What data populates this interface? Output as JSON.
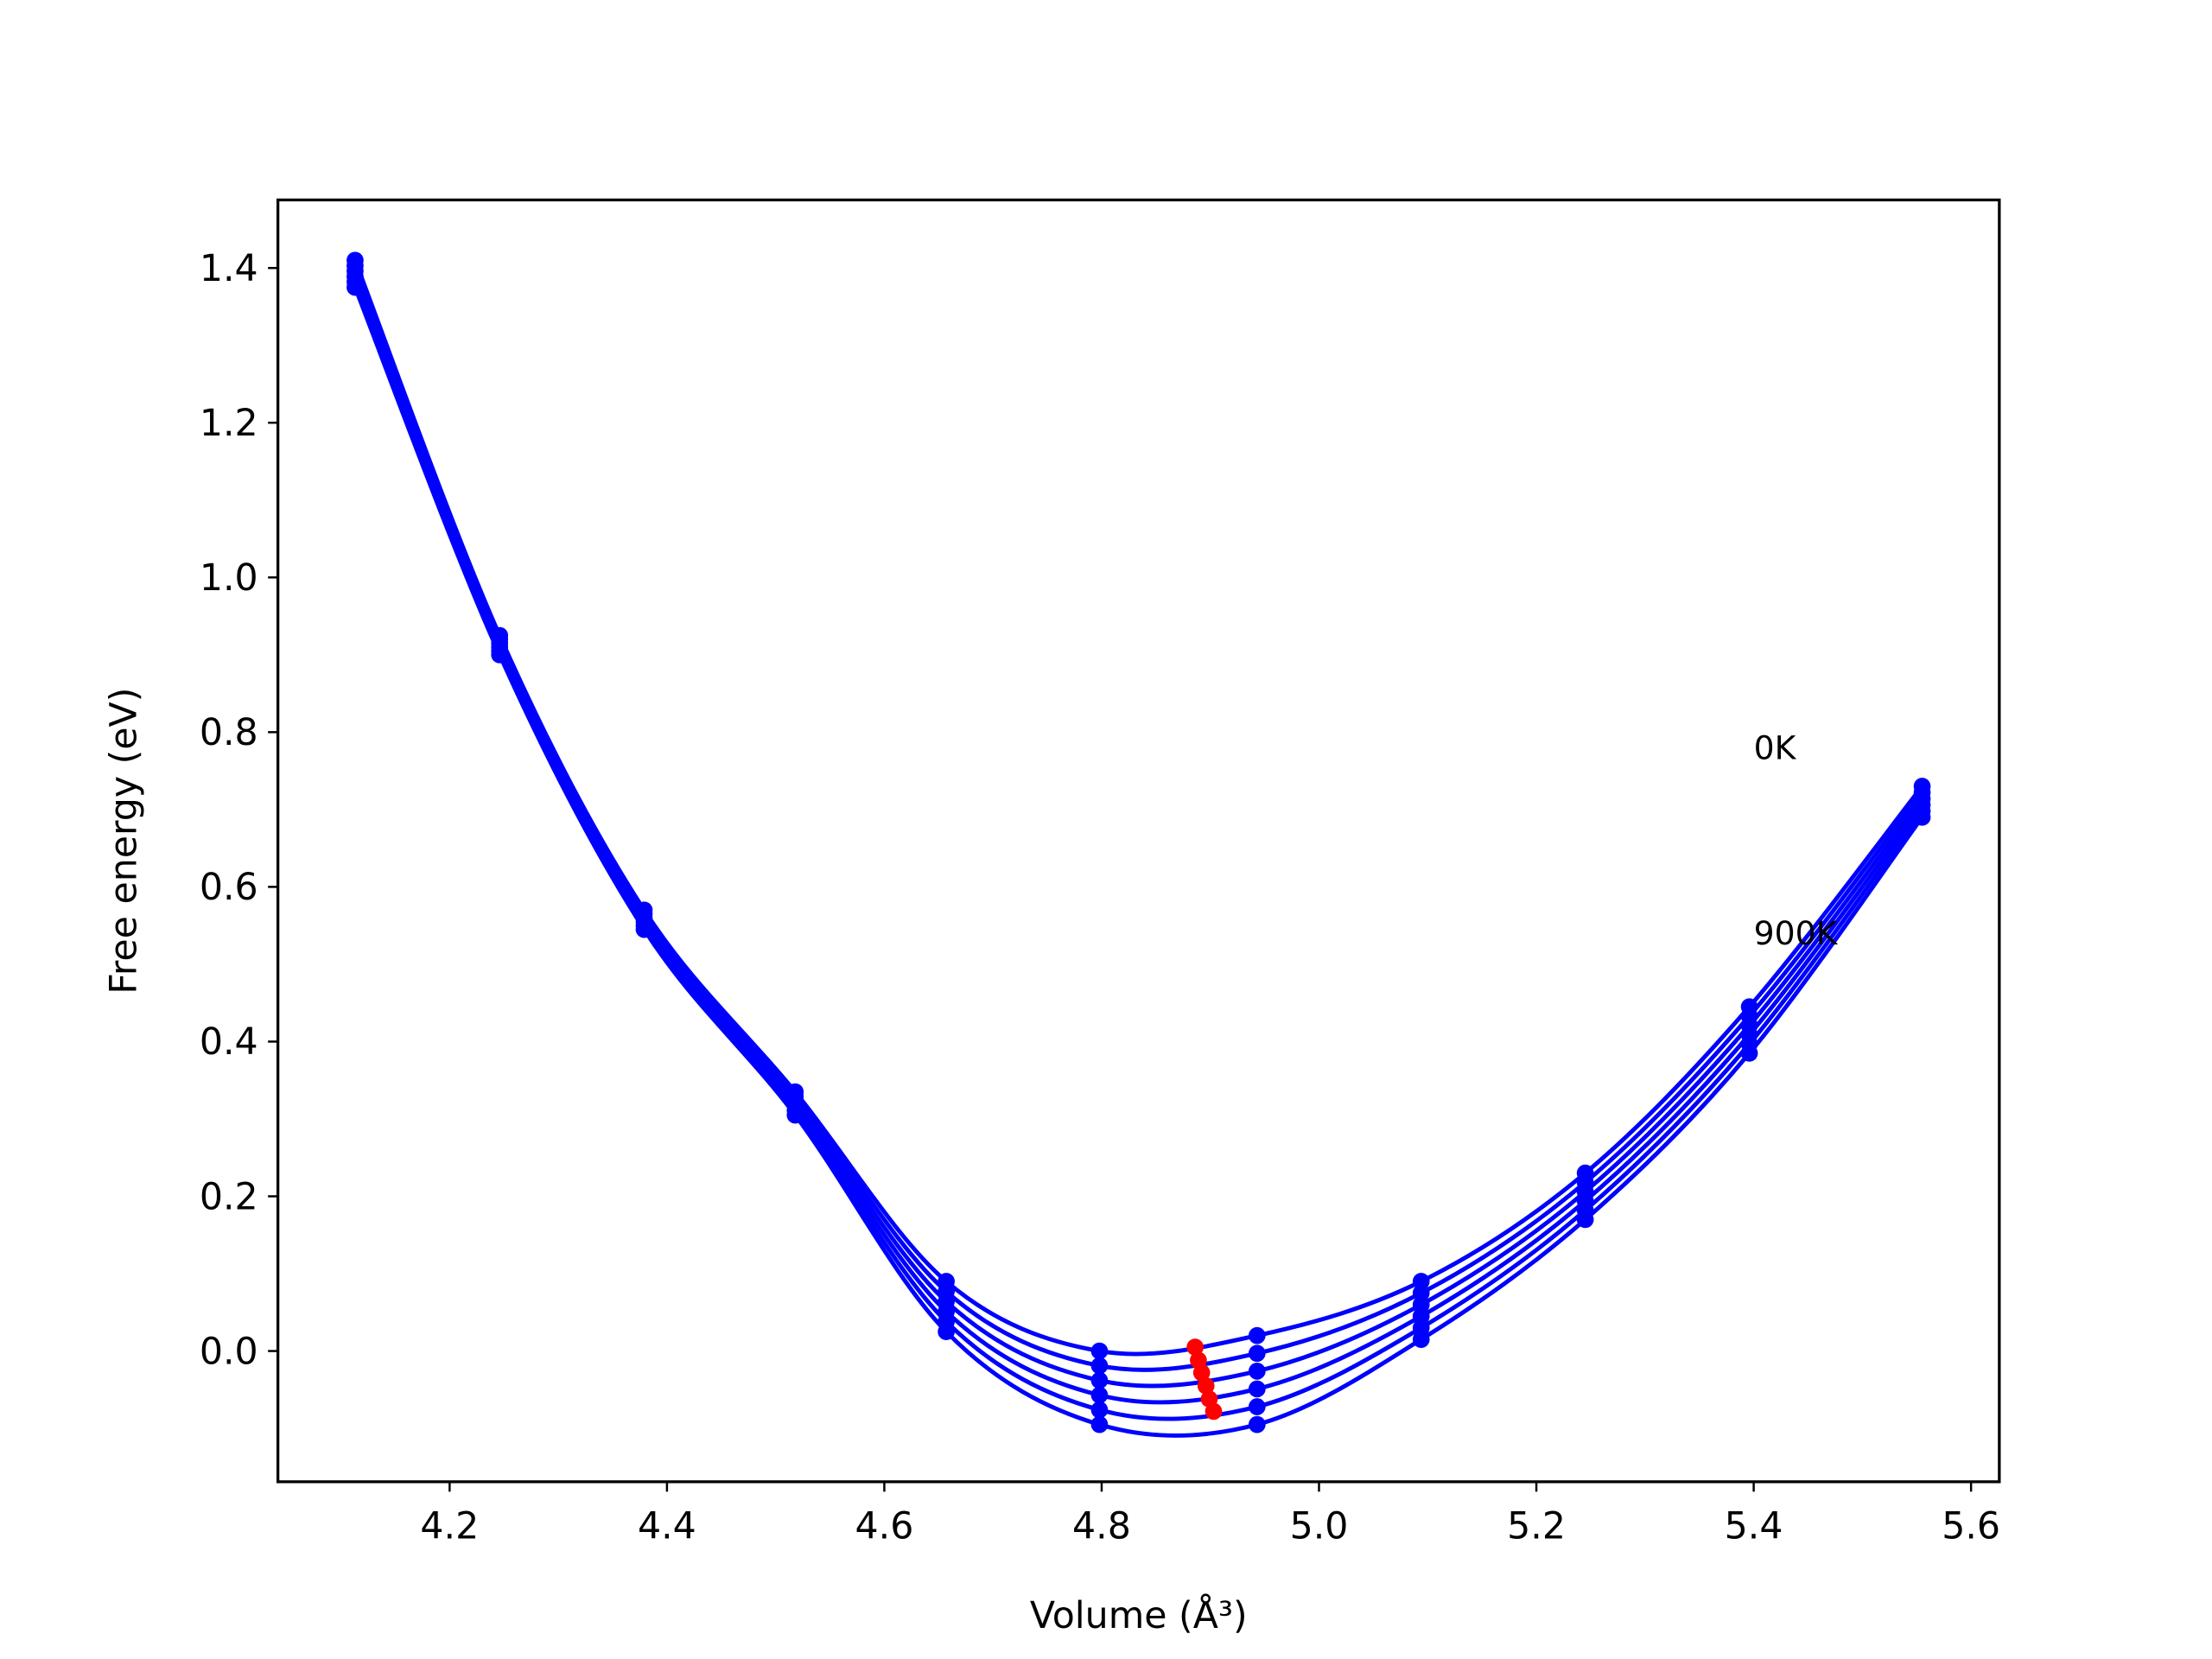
{
  "chart_data": {
    "type": "line",
    "xlabel": "Volume (Å³)",
    "ylabel": "Free energy (eV)",
    "x": [
      4.113,
      4.246,
      4.379,
      4.518,
      4.657,
      4.798,
      4.943,
      5.094,
      5.245,
      5.396,
      5.555
    ],
    "series": [
      {
        "color": "#0000ff",
        "values": [
          1.41,
          0.925,
          0.57,
          0.335,
          0.09,
          0.0,
          0.02,
          0.09,
          0.23,
          0.445,
          0.73
        ]
      },
      {
        "color": "#0000ff",
        "values": [
          1.403,
          0.92,
          0.565,
          0.329,
          0.077,
          -0.019,
          -0.003,
          0.075,
          0.218,
          0.433,
          0.722
        ]
      },
      {
        "color": "#0000ff",
        "values": [
          1.396,
          0.915,
          0.56,
          0.323,
          0.064,
          -0.038,
          -0.026,
          0.06,
          0.206,
          0.421,
          0.714
        ]
      },
      {
        "color": "#0000ff",
        "values": [
          1.389,
          0.91,
          0.555,
          0.317,
          0.051,
          -0.057,
          -0.049,
          0.045,
          0.194,
          0.409,
          0.706
        ]
      },
      {
        "color": "#0000ff",
        "values": [
          1.382,
          0.905,
          0.55,
          0.311,
          0.038,
          -0.076,
          -0.072,
          0.03,
          0.182,
          0.397,
          0.698
        ]
      },
      {
        "color": "#0000ff",
        "values": [
          1.375,
          0.9,
          0.545,
          0.305,
          0.025,
          -0.095,
          -0.095,
          0.015,
          0.17,
          0.385,
          0.69
        ]
      }
    ],
    "minima": {
      "color": "#ff0000",
      "x": [
        4.886,
        4.889,
        4.892,
        4.896,
        4.899,
        4.903
      ],
      "values": [
        0.005,
        -0.012,
        -0.028,
        -0.045,
        -0.062,
        -0.078
      ]
    },
    "annotations": [
      {
        "text": "0K",
        "x": 5.4,
        "y": 0.78
      },
      {
        "text": "900K",
        "x": 5.4,
        "y": 0.54
      }
    ],
    "xlim": [
      4.042,
      5.626
    ],
    "ylim": [
      -0.169,
      1.488
    ],
    "xticks": [
      4.2,
      4.4,
      4.6,
      4.8,
      {
        "value": 5,
        "label": "5.0"
      },
      5.2,
      5.4,
      5.6
    ],
    "yticks": [
      {
        "value": 0,
        "label": "0.0"
      },
      0.2,
      0.4,
      0.6,
      0.8,
      {
        "value": 1,
        "label": "1.0"
      },
      1.2,
      1.4
    ],
    "grid": false
  }
}
